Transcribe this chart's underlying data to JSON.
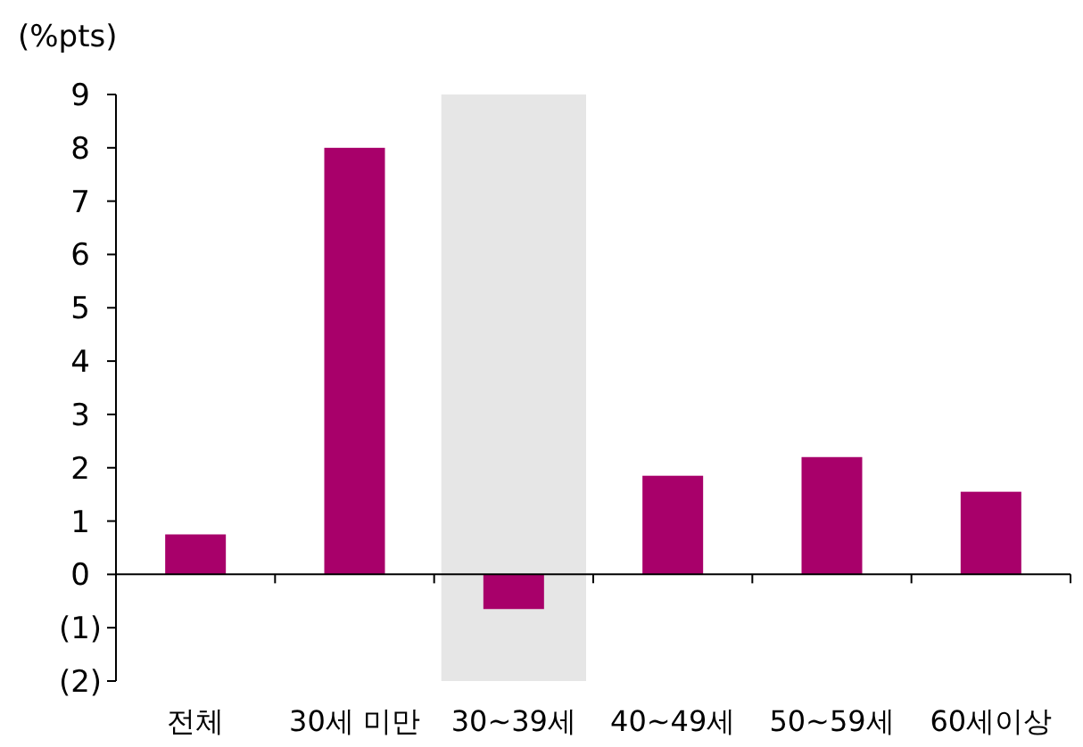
{
  "chart_data": {
    "type": "bar",
    "ylabel": "(%pts)",
    "categories": [
      "전체",
      "30세 미만",
      "30~39세",
      "40~49세",
      "50~59세",
      "60세이상"
    ],
    "values": [
      0.75,
      8.0,
      -0.65,
      1.85,
      2.2,
      1.55
    ],
    "color": "#a8006a",
    "ylim": [
      -2,
      9
    ],
    "yticks": [
      {
        "value": -2,
        "label": "(2)"
      },
      {
        "value": -1,
        "label": "(1)"
      },
      0,
      1,
      2,
      3,
      4,
      5,
      6,
      7,
      8,
      9
    ],
    "bands": [
      {
        "axis": "x",
        "from": "30~39세",
        "to": "30~39세",
        "color": "#e6e6e6"
      }
    ]
  }
}
